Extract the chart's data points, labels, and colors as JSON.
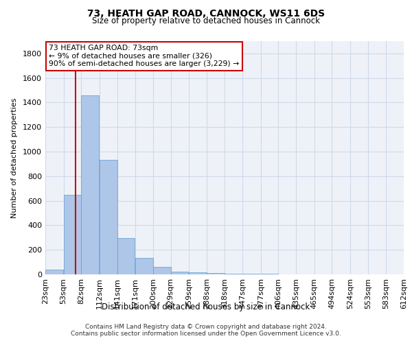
{
  "title1": "73, HEATH GAP ROAD, CANNOCK, WS11 6DS",
  "title2": "Size of property relative to detached houses in Cannock",
  "xlabel": "Distribution of detached houses by size in Cannock",
  "ylabel": "Number of detached properties",
  "footer1": "Contains HM Land Registry data © Crown copyright and database right 2024.",
  "footer2": "Contains public sector information licensed under the Open Government Licence v3.0.",
  "annotation_line1": "73 HEATH GAP ROAD: 73sqm",
  "annotation_line2": "← 9% of detached houses are smaller (326)",
  "annotation_line3": "90% of semi-detached houses are larger (3,229) →",
  "bar_left_edges": [
    23,
    53,
    82,
    112,
    141,
    171,
    200,
    229,
    259,
    288,
    318,
    347,
    377,
    406,
    435,
    465,
    494,
    524,
    553,
    583
  ],
  "bar_widths": [
    29,
    29,
    29,
    29,
    29,
    29,
    29,
    29,
    29,
    29,
    29,
    29,
    29,
    29,
    29,
    29,
    29,
    29,
    29,
    29
  ],
  "bar_heights": [
    40,
    650,
    1460,
    935,
    295,
    135,
    60,
    25,
    15,
    10,
    5,
    5,
    5,
    0,
    0,
    0,
    0,
    0,
    0,
    0
  ],
  "tick_labels": [
    "23sqm",
    "53sqm",
    "82sqm",
    "112sqm",
    "141sqm",
    "171sqm",
    "200sqm",
    "229sqm",
    "259sqm",
    "288sqm",
    "318sqm",
    "347sqm",
    "377sqm",
    "406sqm",
    "435sqm",
    "465sqm",
    "494sqm",
    "524sqm",
    "553sqm",
    "583sqm",
    "612sqm"
  ],
  "bar_color": "#aec6e8",
  "bar_edge_color": "#5b9bd5",
  "red_line_x": 73,
  "ylim": [
    0,
    1900
  ],
  "xlim": [
    23,
    612
  ],
  "grid_color": "#d0d8e8",
  "bg_color": "#eef2f8",
  "annotation_box_color": "#ffffff",
  "annotation_box_edge": "#cc0000",
  "red_line_color": "#cc0000",
  "yticks": [
    0,
    200,
    400,
    600,
    800,
    1000,
    1200,
    1400,
    1600,
    1800
  ]
}
